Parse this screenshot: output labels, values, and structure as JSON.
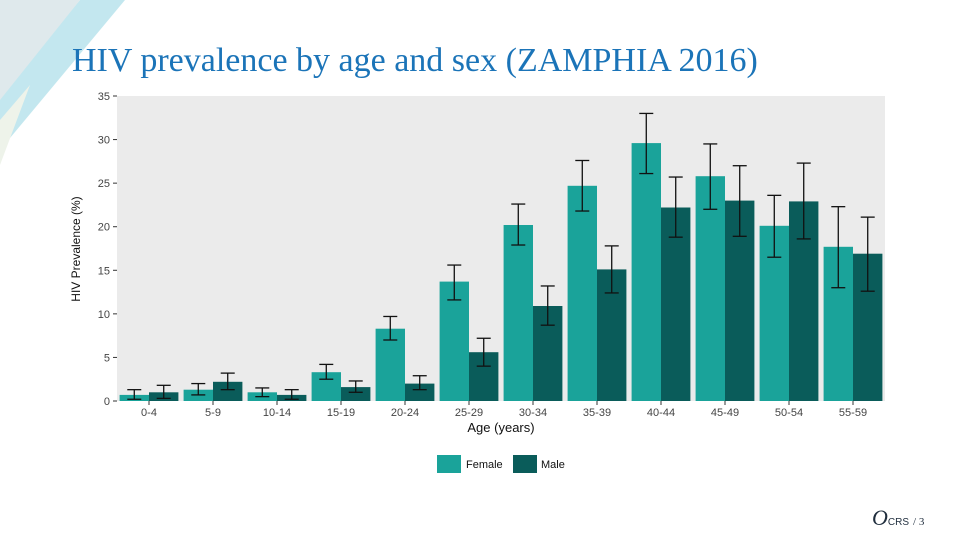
{
  "slide": {
    "title": "HIV prevalence by age and sex (ZAMPHIA 2016)",
    "logo_mark": "O",
    "logo_text": "CRS",
    "page_label": "/ 3"
  },
  "colors": {
    "female": "#1aa39a",
    "male": "#0a5c5a"
  },
  "chart_data": {
    "type": "bar",
    "title": "",
    "xlabel": "Age (years)",
    "ylabel": "HIV Prevalence (%)",
    "ylim": [
      0,
      35
    ],
    "yticks": [
      0,
      5,
      10,
      15,
      20,
      25,
      30,
      35
    ],
    "grid": false,
    "legend": "bottom",
    "categories": [
      "0-4",
      "5-9",
      "10-14",
      "15-19",
      "20-24",
      "25-29",
      "30-34",
      "35-39",
      "40-44",
      "45-49",
      "50-54",
      "55-59"
    ],
    "series": [
      {
        "name": "Female",
        "values": [
          0.7,
          1.3,
          1.0,
          3.3,
          8.3,
          13.7,
          20.2,
          24.7,
          29.6,
          25.8,
          20.1,
          17.7
        ],
        "ci_low": [
          0.2,
          0.7,
          0.5,
          2.5,
          7.0,
          11.6,
          17.9,
          21.8,
          26.1,
          22.0,
          16.5,
          13.0
        ],
        "ci_high": [
          1.3,
          2.0,
          1.5,
          4.2,
          9.7,
          15.6,
          22.6,
          27.6,
          33.0,
          29.5,
          23.6,
          22.3
        ]
      },
      {
        "name": "Male",
        "values": [
          1.0,
          2.2,
          0.7,
          1.6,
          2.0,
          5.6,
          10.9,
          15.1,
          22.2,
          23.0,
          22.9,
          16.9
        ],
        "ci_low": [
          0.3,
          1.3,
          0.2,
          1.0,
          1.3,
          4.0,
          8.7,
          12.4,
          18.8,
          18.9,
          18.6,
          12.6
        ],
        "ci_high": [
          1.8,
          3.2,
          1.3,
          2.3,
          2.9,
          7.2,
          13.2,
          17.8,
          25.7,
          27.0,
          27.3,
          21.1
        ]
      }
    ]
  }
}
